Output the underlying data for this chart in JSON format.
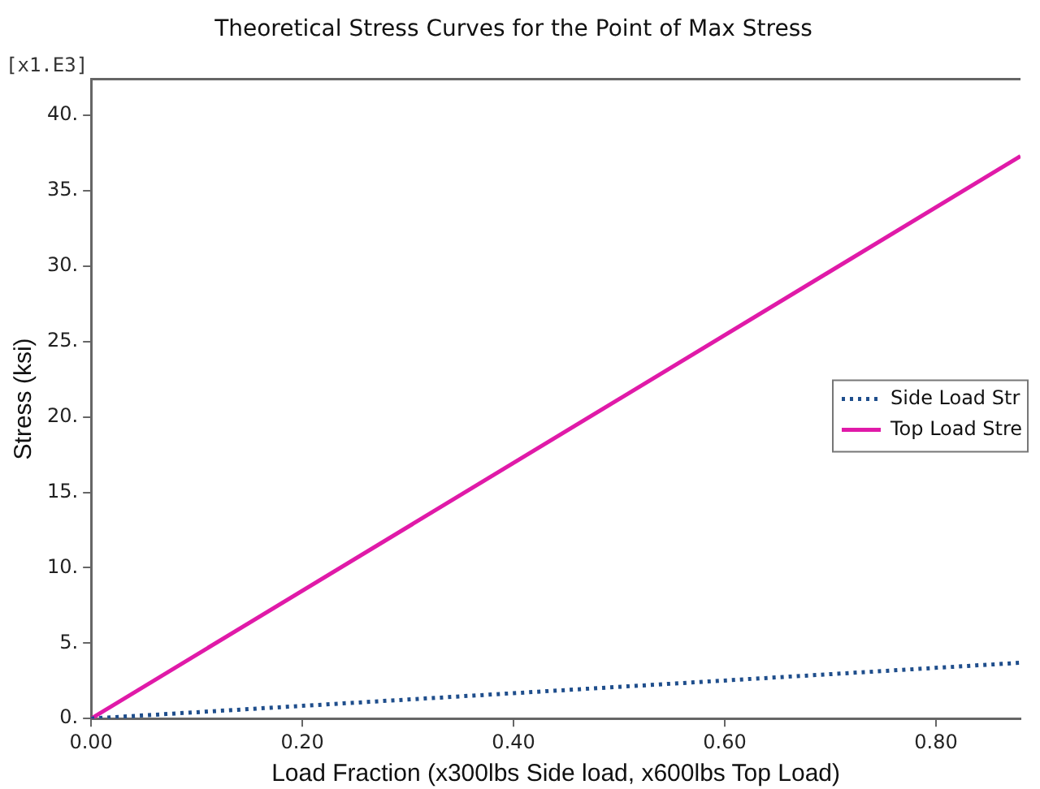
{
  "chart_data": {
    "type": "line",
    "title": "Theoretical Stress Curves for the Point of Max Stress",
    "xlabel": "Load Fraction (x300lbs Side load, x600lbs Top Load)",
    "ylabel": "Stress (ksi)",
    "annotations": [
      "[x1.E3]"
    ],
    "x": [
      0,
      0.88
    ],
    "series": [
      {
        "name": "Side Load Str",
        "color": "#1f4e8c",
        "values": [
          0,
          3.7
        ],
        "line_style": "dotted"
      },
      {
        "name": "Top Load Stre",
        "color": "#e01aa8",
        "values": [
          0,
          37.3
        ],
        "line_style": "solid"
      }
    ],
    "xlim": [
      0,
      0.88
    ],
    "xticks": [
      {
        "value": 0,
        "label": "0.00"
      },
      {
        "value": 0.2,
        "label": "0.20"
      },
      {
        "value": 0.4,
        "label": "0.40"
      },
      {
        "value": 0.6,
        "label": "0.60"
      },
      {
        "value": 0.8,
        "label": "0.80"
      }
    ],
    "ylim": [
      0,
      42.4
    ],
    "yticks": [
      {
        "value": 0,
        "label": "0."
      },
      {
        "value": 5,
        "label": "5."
      },
      {
        "value": 10,
        "label": "10."
      },
      {
        "value": 15,
        "label": "15."
      },
      {
        "value": 20,
        "label": "20."
      },
      {
        "value": 25,
        "label": "25."
      },
      {
        "value": 30,
        "label": "30."
      },
      {
        "value": 35,
        "label": "35."
      },
      {
        "value": 40,
        "label": "40."
      }
    ],
    "grid": false,
    "legend": "right",
    "marker": "none"
  }
}
